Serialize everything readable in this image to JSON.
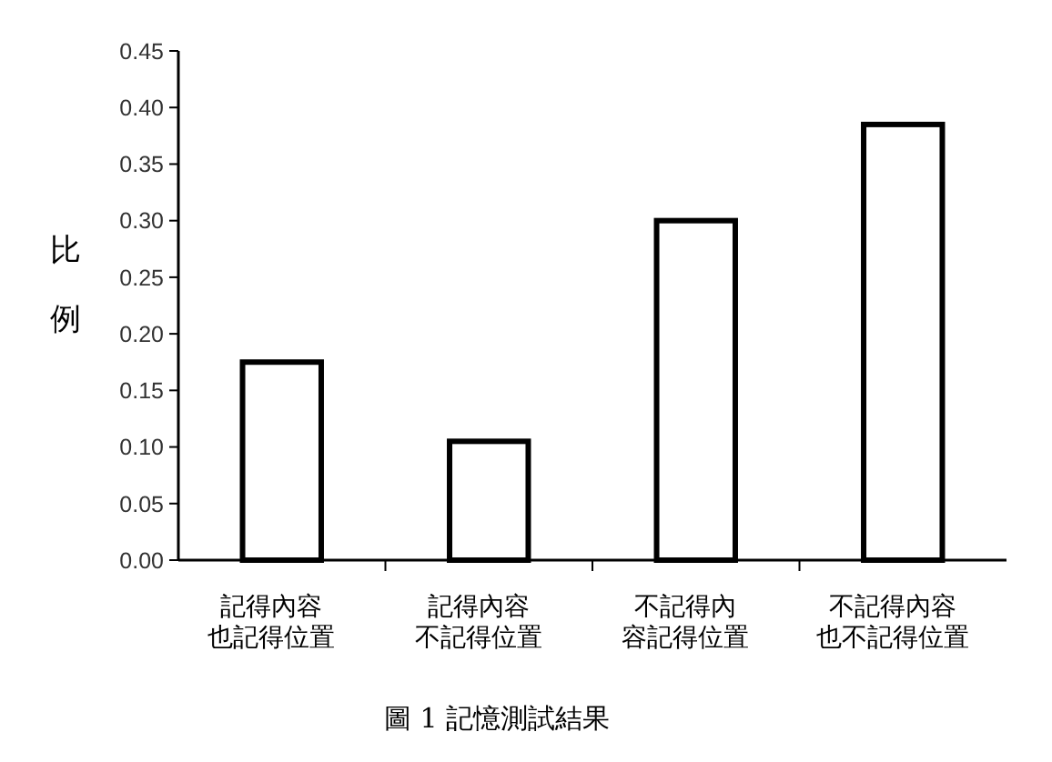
{
  "chart_data": {
    "type": "bar",
    "ylabel": "比例",
    "categories": [
      "記得內容也記得位置",
      "記得內容不記得位置",
      "不記得內容記得位置",
      "不記得內容也不記得位置"
    ],
    "values": [
      0.175,
      0.105,
      0.3,
      0.385
    ],
    "color": "#ffffff",
    "ylim": [
      0,
      0.45
    ],
    "yticks": [
      {
        "value": 0,
        "label": "0.00"
      },
      {
        "value": 0.05,
        "label": "0.05"
      },
      {
        "value": 0.1,
        "label": "0.10"
      },
      {
        "value": 0.15,
        "label": "0.15"
      },
      {
        "value": 0.2,
        "label": "0.20"
      },
      {
        "value": 0.25,
        "label": "0.25"
      },
      {
        "value": 0.3,
        "label": "0.30"
      },
      {
        "value": 0.35,
        "label": "0.35"
      },
      {
        "value": 0.4,
        "label": "0.40"
      },
      {
        "value": 0.45,
        "label": "0.45"
      }
    ],
    "grid": false,
    "annotations": [
      "圖 1 記憶測試結果"
    ]
  }
}
